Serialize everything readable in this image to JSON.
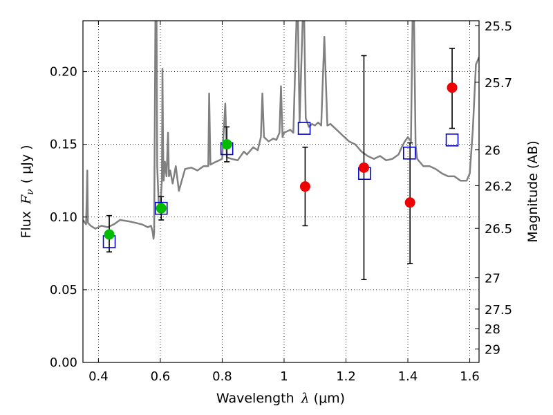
{
  "chart_data": {
    "type": "scatter",
    "xlabel": {
      "text": "Wavelength",
      "symbol": "λ",
      "unit": "(μm)"
    },
    "ylabel": {
      "text": "Flux",
      "symbol": "F",
      "subscript": "ν",
      "unit": "( μJy )"
    },
    "ylabel_right": "Magnitude (AB)",
    "xlim": [
      0.35,
      1.63
    ],
    "ylim": [
      0.0,
      0.235
    ],
    "x_ticks": [
      0.4,
      0.6,
      0.8,
      1.0,
      1.2,
      1.4,
      1.6
    ],
    "x_tick_labels": [
      "0.4",
      "0.6",
      "0.8",
      "1",
      "1.2",
      "1.4",
      "1.6"
    ],
    "y_ticks": [
      0.0,
      0.05,
      0.1,
      0.15,
      0.2
    ],
    "y_tick_labels": [
      "0.00",
      "0.05",
      "0.10",
      "0.15",
      "0.20"
    ],
    "right_ticks": [
      {
        "label": "25.5",
        "flux": 0.2317
      },
      {
        "label": "25.7",
        "flux": 0.1927
      },
      {
        "label": "26",
        "flux": 0.1462
      },
      {
        "label": "26.2",
        "flux": 0.1216
      },
      {
        "label": "26.5",
        "flux": 0.0922
      },
      {
        "label": "27",
        "flux": 0.0582
      },
      {
        "label": "27.5",
        "flux": 0.0367
      },
      {
        "label": "28",
        "flux": 0.0232
      },
      {
        "label": "29",
        "flux": 0.0092
      }
    ],
    "grid": true,
    "colors": {
      "spectrum": "#808080",
      "model_points": "#0000cc",
      "green_points": "#00bb00",
      "red_points": "#ee0000",
      "errorbars": "#000000"
    },
    "spectrum": [
      [
        0.35,
        0.098
      ],
      [
        0.36,
        0.095
      ],
      [
        0.362,
        0.112
      ],
      [
        0.364,
        0.132
      ],
      [
        0.366,
        0.096
      ],
      [
        0.375,
        0.094
      ],
      [
        0.39,
        0.092
      ],
      [
        0.41,
        0.094
      ],
      [
        0.43,
        0.093
      ],
      [
        0.45,
        0.095
      ],
      [
        0.47,
        0.098
      ],
      [
        0.5,
        0.097
      ],
      [
        0.52,
        0.096
      ],
      [
        0.54,
        0.095
      ],
      [
        0.55,
        0.094
      ],
      [
        0.56,
        0.093
      ],
      [
        0.57,
        0.094
      ],
      [
        0.575,
        0.09
      ],
      [
        0.578,
        0.085
      ],
      [
        0.58,
        0.089
      ],
      [
        0.584,
        0.235
      ],
      [
        0.588,
        0.235
      ],
      [
        0.59,
        0.135
      ],
      [
        0.595,
        0.108
      ],
      [
        0.6,
        0.107
      ],
      [
        0.605,
        0.125
      ],
      [
        0.607,
        0.202
      ],
      [
        0.609,
        0.15
      ],
      [
        0.611,
        0.125
      ],
      [
        0.615,
        0.138
      ],
      [
        0.62,
        0.128
      ],
      [
        0.625,
        0.158
      ],
      [
        0.628,
        0.128
      ],
      [
        0.632,
        0.132
      ],
      [
        0.64,
        0.123
      ],
      [
        0.65,
        0.135
      ],
      [
        0.66,
        0.118
      ],
      [
        0.68,
        0.133
      ],
      [
        0.7,
        0.134
      ],
      [
        0.72,
        0.132
      ],
      [
        0.74,
        0.135
      ],
      [
        0.755,
        0.135
      ],
      [
        0.758,
        0.185
      ],
      [
        0.762,
        0.136
      ],
      [
        0.77,
        0.137
      ],
      [
        0.78,
        0.138
      ],
      [
        0.8,
        0.14
      ],
      [
        0.81,
        0.178
      ],
      [
        0.815,
        0.141
      ],
      [
        0.83,
        0.14
      ],
      [
        0.85,
        0.139
      ],
      [
        0.87,
        0.145
      ],
      [
        0.88,
        0.143
      ],
      [
        0.9,
        0.148
      ],
      [
        0.915,
        0.146
      ],
      [
        0.925,
        0.155
      ],
      [
        0.93,
        0.185
      ],
      [
        0.935,
        0.155
      ],
      [
        0.95,
        0.152
      ],
      [
        0.965,
        0.154
      ],
      [
        0.975,
        0.153
      ],
      [
        0.985,
        0.158
      ],
      [
        0.99,
        0.19
      ],
      [
        0.995,
        0.155
      ],
      [
        1.0,
        0.158
      ],
      [
        1.02,
        0.16
      ],
      [
        1.03,
        0.158
      ],
      [
        1.04,
        0.235
      ],
      [
        1.045,
        0.235
      ],
      [
        1.05,
        0.165
      ],
      [
        1.06,
        0.235
      ],
      [
        1.065,
        0.235
      ],
      [
        1.07,
        0.168
      ],
      [
        1.08,
        0.162
      ],
      [
        1.09,
        0.164
      ],
      [
        1.1,
        0.163
      ],
      [
        1.11,
        0.165
      ],
      [
        1.12,
        0.163
      ],
      [
        1.13,
        0.224
      ],
      [
        1.14,
        0.163
      ],
      [
        1.15,
        0.164
      ],
      [
        1.17,
        0.16
      ],
      [
        1.19,
        0.156
      ],
      [
        1.21,
        0.152
      ],
      [
        1.23,
        0.15
      ],
      [
        1.25,
        0.145
      ],
      [
        1.27,
        0.142
      ],
      [
        1.29,
        0.14
      ],
      [
        1.31,
        0.142
      ],
      [
        1.33,
        0.139
      ],
      [
        1.35,
        0.14
      ],
      [
        1.37,
        0.143
      ],
      [
        1.38,
        0.148
      ],
      [
        1.39,
        0.152
      ],
      [
        1.4,
        0.155
      ],
      [
        1.41,
        0.152
      ],
      [
        1.415,
        0.235
      ],
      [
        1.42,
        0.235
      ],
      [
        1.425,
        0.15
      ],
      [
        1.43,
        0.14
      ],
      [
        1.45,
        0.135
      ],
      [
        1.47,
        0.135
      ],
      [
        1.49,
        0.133
      ],
      [
        1.51,
        0.13
      ],
      [
        1.53,
        0.128
      ],
      [
        1.55,
        0.128
      ],
      [
        1.57,
        0.125
      ],
      [
        1.59,
        0.125
      ],
      [
        1.6,
        0.13
      ],
      [
        1.61,
        0.16
      ],
      [
        1.62,
        0.205
      ],
      [
        1.63,
        0.21
      ]
    ],
    "model_points": [
      {
        "x": 0.435,
        "y": 0.083
      },
      {
        "x": 0.603,
        "y": 0.106
      },
      {
        "x": 0.815,
        "y": 0.147
      },
      {
        "x": 1.065,
        "y": 0.161
      },
      {
        "x": 1.26,
        "y": 0.13
      },
      {
        "x": 1.405,
        "y": 0.144
      },
      {
        "x": 1.543,
        "y": 0.153
      }
    ],
    "green_points": [
      {
        "x": 0.435,
        "y": 0.088,
        "yerr_low": 0.076,
        "yerr_high": 0.101
      },
      {
        "x": 0.603,
        "y": 0.106,
        "yerr_low": 0.098,
        "yerr_high": 0.114
      },
      {
        "x": 0.815,
        "y": 0.15,
        "yerr_low": 0.138,
        "yerr_high": 0.162
      }
    ],
    "red_points": [
      {
        "x": 1.068,
        "y": 0.121,
        "yerr_low": 0.094,
        "yerr_high": 0.148
      },
      {
        "x": 1.258,
        "y": 0.134,
        "yerr_low": 0.057,
        "yerr_high": 0.211
      },
      {
        "x": 1.407,
        "y": 0.11,
        "yerr_low": 0.068,
        "yerr_high": 0.151
      },
      {
        "x": 1.543,
        "y": 0.189,
        "yerr_low": 0.161,
        "yerr_high": 0.216
      }
    ]
  }
}
